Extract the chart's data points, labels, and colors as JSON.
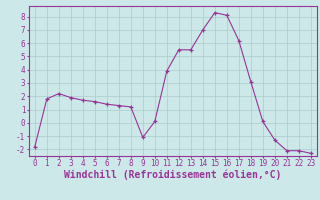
{
  "x": [
    0,
    1,
    2,
    3,
    4,
    5,
    6,
    7,
    8,
    9,
    10,
    11,
    12,
    13,
    14,
    15,
    16,
    17,
    18,
    19,
    20,
    21,
    22,
    23
  ],
  "y": [
    -1.8,
    1.8,
    2.2,
    1.9,
    1.7,
    1.6,
    1.4,
    1.3,
    1.2,
    -1.1,
    0.1,
    3.9,
    5.5,
    5.5,
    7.0,
    8.3,
    8.1,
    6.2,
    3.1,
    0.1,
    -1.3,
    -2.1,
    -2.1,
    -2.3
  ],
  "xlabel": "Windchill (Refroidissement éolien,°C)",
  "line_color": "#993399",
  "marker_color": "#993399",
  "bg_color": "#cce8e8",
  "grid_color": "#aacccc",
  "ylim": [
    -2.5,
    8.8
  ],
  "xlim": [
    -0.5,
    23.5
  ],
  "yticks": [
    -2,
    -1,
    0,
    1,
    2,
    3,
    4,
    5,
    6,
    7,
    8
  ],
  "xticks": [
    0,
    1,
    2,
    3,
    4,
    5,
    6,
    7,
    8,
    9,
    10,
    11,
    12,
    13,
    14,
    15,
    16,
    17,
    18,
    19,
    20,
    21,
    22,
    23
  ],
  "tick_fontsize": 5.5,
  "xlabel_fontsize": 7.0,
  "tick_color": "#993399",
  "spine_color": "#993399"
}
